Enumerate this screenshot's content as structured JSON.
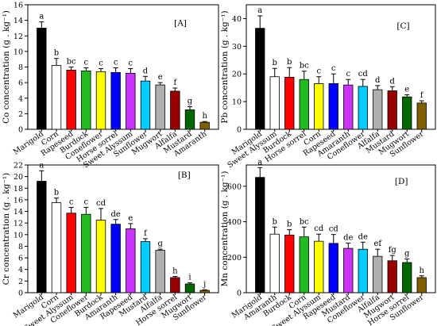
{
  "chart_data": [
    {
      "type": "bar",
      "panel_label": "[A]",
      "ylabel": "Co concentration (g . kg⁻¹)",
      "ylim": [
        0,
        16
      ],
      "yticks": [
        0,
        2,
        4,
        6,
        8,
        10,
        12,
        14,
        16
      ],
      "grid": false,
      "categories": [
        "Marigold",
        "Corn",
        "Rapeseed",
        "Burdock",
        "Coneflower",
        "Horse sorrel",
        "Sweet Alyssum",
        "Sunflower",
        "Mugwort",
        "Alfalfa",
        "Mustard",
        "Amaranth"
      ],
      "values": [
        13.0,
        8.2,
        7.6,
        7.5,
        7.4,
        7.3,
        7.2,
        6.2,
        5.7,
        4.9,
        2.5,
        0.9
      ],
      "errors": [
        0.8,
        0.9,
        0.4,
        0.4,
        0.4,
        0.6,
        0.6,
        0.6,
        0.3,
        0.4,
        0.4,
        0.1
      ],
      "letters": [
        "a",
        "b",
        "bc",
        "c",
        "c",
        "c",
        "c",
        "d",
        "e",
        "f",
        "g",
        "h"
      ],
      "colors": [
        "#000000",
        "#ffffff",
        "#ff0000",
        "#22bb22",
        "#ffff00",
        "#0000ff",
        "#cc33ff",
        "#00ccff",
        "#b0b0b0",
        "#990000",
        "#006600",
        "#7f6000"
      ]
    },
    {
      "type": "bar",
      "panel_label": "[C]",
      "ylabel": "Pb concentration (g . kg⁻¹)",
      "ylim": [
        0,
        45
      ],
      "yticks": [
        0,
        10,
        20,
        30,
        40
      ],
      "grid": false,
      "categories": [
        "Marigold",
        "Sweet Alyssum",
        "Burdock",
        "Horse sorrel",
        "Corn",
        "Rapeseed",
        "Amaranth",
        "Coneflower",
        "Alfalfa",
        "Mustard",
        "Mugwort",
        "Sunflower"
      ],
      "values": [
        36.5,
        19.0,
        18.8,
        18.0,
        16.5,
        16.5,
        16.0,
        15.5,
        14.3,
        13.9,
        11.7,
        9.5
      ],
      "errors": [
        4.5,
        3.0,
        3.5,
        3.0,
        2.5,
        3.5,
        2.0,
        2.5,
        1.5,
        1.5,
        0.8,
        0.8
      ],
      "letters": [
        "a",
        "b",
        "b",
        "bc",
        "c",
        "c",
        "c",
        "cd",
        "d",
        "d",
        "e",
        "f"
      ],
      "colors": [
        "#000000",
        "#ffffff",
        "#ff0000",
        "#22bb22",
        "#ffff00",
        "#0000ff",
        "#cc33ff",
        "#00ccff",
        "#b0b0b0",
        "#990000",
        "#006600",
        "#7f6000"
      ]
    },
    {
      "type": "bar",
      "panel_label": "[B]",
      "ylabel": "Cr concentration (g . kg⁻¹)",
      "ylim": [
        0,
        22
      ],
      "yticks": [
        0,
        2,
        4,
        6,
        8,
        10,
        12,
        14,
        16,
        18,
        20,
        22
      ],
      "grid": false,
      "categories": [
        "Marigold",
        "Corn",
        "Sweet Alyssum",
        "Coneflower",
        "Burdock",
        "Amaranth",
        "Rapeseed",
        "Mustard",
        "Alfalfa",
        "Horse sorrel",
        "Mugwort",
        "Sunflower"
      ],
      "values": [
        19.2,
        15.5,
        13.7,
        13.5,
        12.5,
        11.8,
        11.0,
        8.8,
        7.3,
        2.6,
        1.5,
        0.4
      ],
      "errors": [
        1.8,
        0.8,
        1.0,
        1.2,
        2.0,
        0.8,
        0.9,
        0.5,
        0.2,
        0.2,
        0.2,
        0.1
      ],
      "letters": [
        "a",
        "b",
        "c",
        "c",
        "cd",
        "de",
        "e",
        "f",
        "g",
        "h",
        "i",
        "j"
      ],
      "colors": [
        "#000000",
        "#ffffff",
        "#ff0000",
        "#22bb22",
        "#ffff00",
        "#0000ff",
        "#cc33ff",
        "#00ccff",
        "#b0b0b0",
        "#990000",
        "#006600",
        "#7f6000"
      ]
    },
    {
      "type": "bar",
      "panel_label": "[D]",
      "ylabel": "Mn concentration (g . kg⁻¹)",
      "ylim": [
        0,
        720
      ],
      "yticks": [
        0,
        200,
        400,
        600
      ],
      "grid": false,
      "categories": [
        "Marigold",
        "Amaranth",
        "Burdock",
        "Corn",
        "Sweet Alyssum",
        "Rapeseed",
        "Mustard",
        "Coneflower",
        "Alfalfa",
        "Mugwort",
        "Horse sorrel",
        "Sunflower"
      ],
      "values": [
        650,
        330,
        325,
        315,
        290,
        278,
        250,
        245,
        205,
        180,
        170,
        85
      ],
      "errors": [
        55,
        40,
        30,
        55,
        40,
        50,
        30,
        40,
        40,
        30,
        20,
        10
      ],
      "letters": [
        "a",
        "b",
        "b",
        "bc",
        "cd",
        "cd",
        "de",
        "de",
        "ef",
        "fg",
        "g",
        "h"
      ],
      "colors": [
        "#000000",
        "#ffffff",
        "#ff0000",
        "#22bb22",
        "#ffff00",
        "#0000ff",
        "#cc33ff",
        "#00ccff",
        "#b0b0b0",
        "#990000",
        "#006600",
        "#7f6000"
      ]
    }
  ]
}
